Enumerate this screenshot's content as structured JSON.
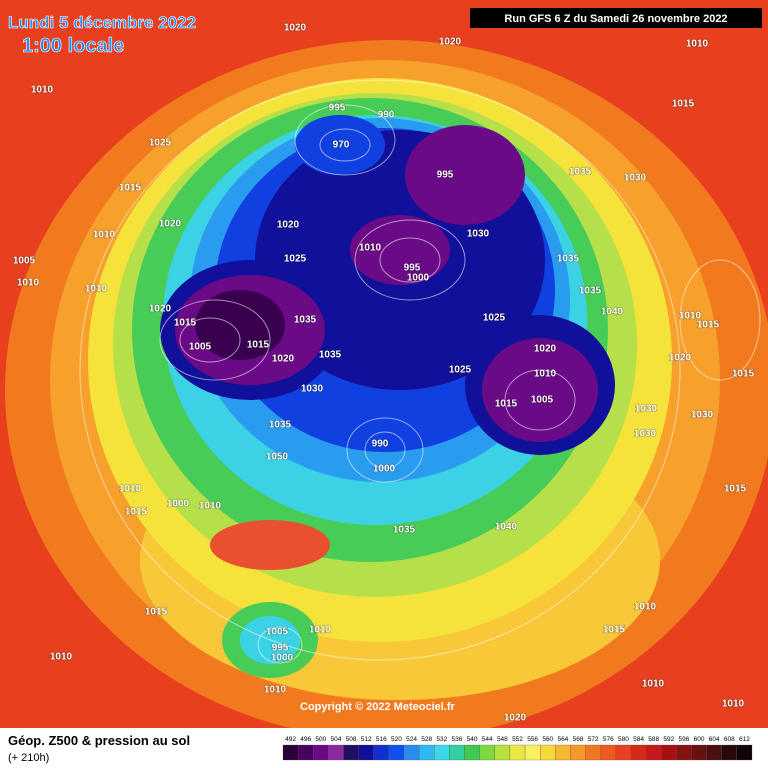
{
  "header": {
    "title": "Lundi 5 décembre 2022",
    "subtitle": "1:00 locale",
    "run": "Run GFS 6 Z du Samedi 26 novembre 2022"
  },
  "copyright": "Copyright © 2022 Meteociel.fr",
  "footer": {
    "title": "Géop. Z500 & pression au sol",
    "lead": "(+ 210h)"
  },
  "isobar_labels": [
    1020,
    1020,
    1010,
    1010,
    1015,
    995,
    990,
    970,
    1025,
    995,
    1035,
    1030,
    1015,
    1020,
    1020,
    1010,
    1030,
    1010,
    1005,
    1025,
    1035,
    995,
    1000,
    1010,
    1010,
    1035,
    1020,
    1040,
    1010,
    1015,
    1035,
    1025,
    1015,
    1005,
    1015,
    1020,
    1035,
    1020,
    1020,
    1025,
    1010,
    1015,
    1030,
    1005,
    1015,
    1030,
    1030,
    1035,
    990,
    1030,
    1050,
    1000,
    1010,
    1015,
    1000,
    1010,
    1015,
    1040,
    1035,
    1015,
    1010,
    1005,
    1010,
    995,
    1000,
    1015,
    1010,
    1010,
    1010,
    1010,
    1020
  ],
  "scale": {
    "values": [
      492,
      496,
      500,
      504,
      508,
      512,
      516,
      520,
      524,
      528,
      532,
      536,
      540,
      544,
      548,
      552,
      556,
      560,
      564,
      568,
      572,
      576,
      580,
      584,
      588,
      592,
      596,
      600,
      604,
      608,
      612
    ],
    "colors": [
      "#2a0036",
      "#4a0060",
      "#6a0a86",
      "#8a2a9e",
      "#201060",
      "#10109a",
      "#1030d0",
      "#1050f0",
      "#2a8cf0",
      "#30b8f0",
      "#3cd8e6",
      "#30d0a0",
      "#40c850",
      "#80d840",
      "#b8e040",
      "#e8e840",
      "#f8f060",
      "#f8d838",
      "#f8b830",
      "#f89828",
      "#f07820",
      "#f05820",
      "#e84020",
      "#d82818",
      "#c81818",
      "#a81010",
      "#881010",
      "#681010",
      "#481010",
      "#280808",
      "#100404"
    ]
  }
}
